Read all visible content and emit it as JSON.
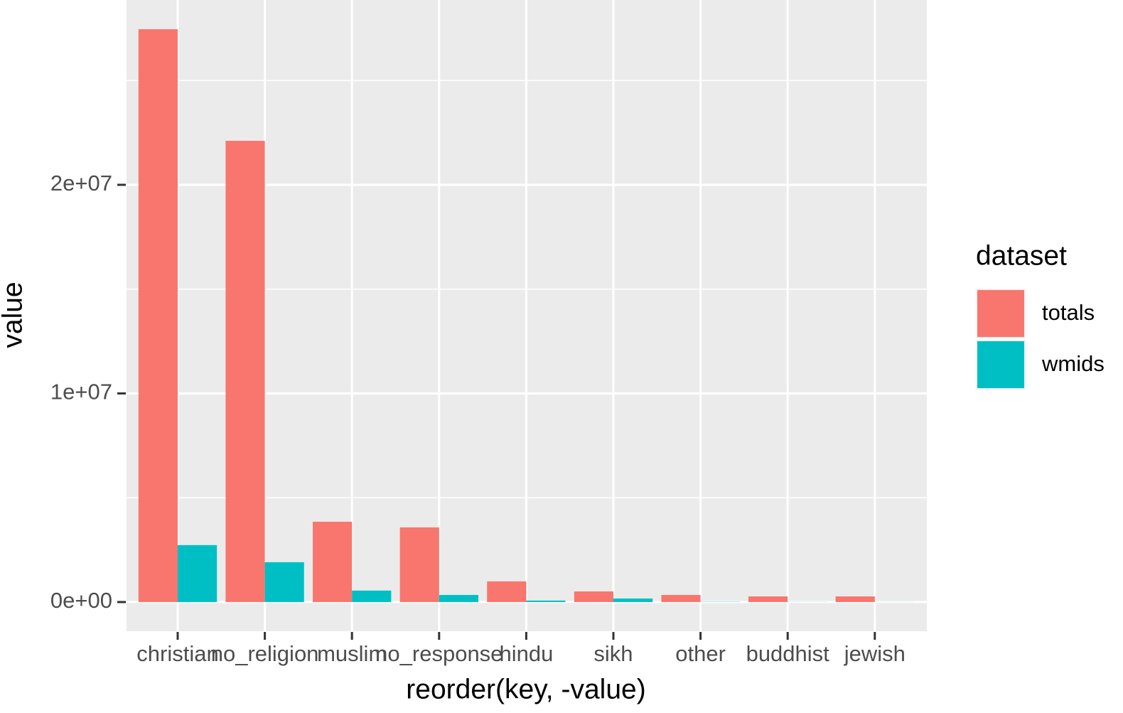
{
  "chart_data": {
    "type": "bar",
    "x_label": "reorder(key, -value)",
    "y_label": "value",
    "categories": [
      "christian",
      "no_religion",
      "muslim",
      "no_response",
      "hindu",
      "sikh",
      "other",
      "buddhist",
      "jewish"
    ],
    "series": [
      {
        "name": "totals",
        "color": "#f8766d",
        "values": [
          27460000,
          22110000,
          3850000,
          3580000,
          990000,
          510000,
          340000,
          270000,
          270000
        ]
      },
      {
        "name": "wmids",
        "color": "#00bfc4",
        "values": [
          2730000,
          1910000,
          550000,
          340000,
          70000,
          170000,
          10000,
          5000,
          3000
        ]
      }
    ],
    "ylim": [
      -1400000,
      28860000
    ],
    "yticks": [
      {
        "value": 0,
        "label": "0e+00"
      },
      {
        "value": 10000000,
        "label": "1e+07"
      },
      {
        "value": 20000000,
        "label": "2e+07"
      }
    ],
    "yticks_minor": [
      5000000,
      15000000,
      25000000
    ],
    "grid": true,
    "legend_title": "dataset",
    "legend_position": "right"
  }
}
